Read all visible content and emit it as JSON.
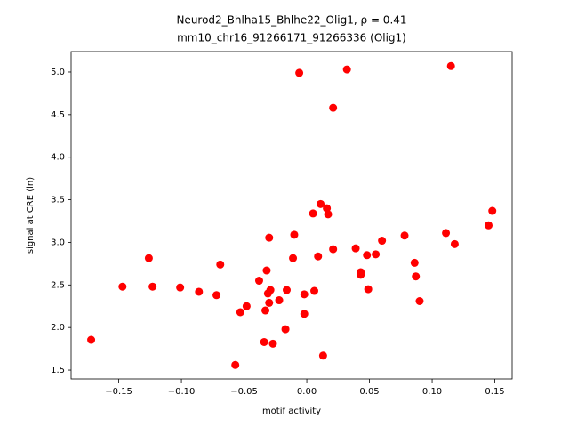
{
  "chart_data": {
    "type": "scatter",
    "title": "Neurod2_Bhlha15_Bhlhe22_Olig1, ρ = 0.41",
    "subtitle": "mm10_chr16_91266171_91266336 (Olig1)",
    "x_label": "motif activity",
    "y_label": "signal at CRE (ln)",
    "color": "#ff0000",
    "xlim": [
      -0.188,
      0.1638
    ],
    "ylim": [
      1.396,
      5.24
    ],
    "xticks": [
      {
        "value": -0.15,
        "label": "−0.15"
      },
      {
        "value": -0.1,
        "label": "−0.10"
      },
      {
        "value": -0.05,
        "label": "−0.05"
      },
      {
        "value": 0,
        "label": "0.00"
      },
      0.05,
      {
        "value": 0.1,
        "label": "0.10"
      },
      0.15
    ],
    "yticks": [
      1.5,
      {
        "value": 2,
        "label": "2.0"
      },
      2.5,
      {
        "value": 3,
        "label": "3.0"
      },
      3.5,
      {
        "value": 4,
        "label": "4.0"
      },
      4.5,
      {
        "value": 5,
        "label": "5.0"
      }
    ],
    "x": [
      -0.172,
      -0.147,
      -0.126,
      -0.123,
      -0.101,
      -0.086,
      -0.072,
      -0.069,
      -0.057,
      -0.053,
      -0.048,
      -0.038,
      -0.034,
      -0.033,
      -0.032,
      -0.031,
      -0.03,
      -0.03,
      -0.029,
      -0.027,
      -0.022,
      -0.017,
      -0.016,
      -0.011,
      -0.01,
      -0.006,
      -0.002,
      -0.002,
      0.005,
      0.006,
      0.009,
      0.011,
      0.013,
      0.016,
      0.017,
      0.021,
      0.021,
      0.032,
      0.039,
      0.043,
      0.043,
      0.048,
      0.049,
      0.055,
      0.06,
      0.078,
      0.086,
      0.087,
      0.09,
      0.111,
      0.115,
      0.118,
      0.145,
      0.148
    ],
    "values": [
      1.855,
      2.48,
      2.815,
      2.48,
      2.47,
      2.42,
      2.38,
      2.74,
      1.56,
      2.18,
      2.25,
      2.55,
      1.83,
      2.2,
      2.67,
      2.4,
      3.055,
      2.29,
      2.44,
      1.81,
      2.32,
      1.98,
      2.44,
      2.815,
      3.09,
      4.99,
      2.39,
      2.16,
      3.34,
      2.43,
      2.835,
      3.45,
      1.67,
      3.4,
      3.33,
      4.58,
      2.92,
      5.03,
      2.93,
      2.65,
      2.62,
      2.85,
      2.45,
      2.86,
      3.02,
      3.08,
      2.76,
      2.6,
      2.31,
      3.11,
      5.07,
      2.98,
      3.2,
      3.37
    ]
  }
}
